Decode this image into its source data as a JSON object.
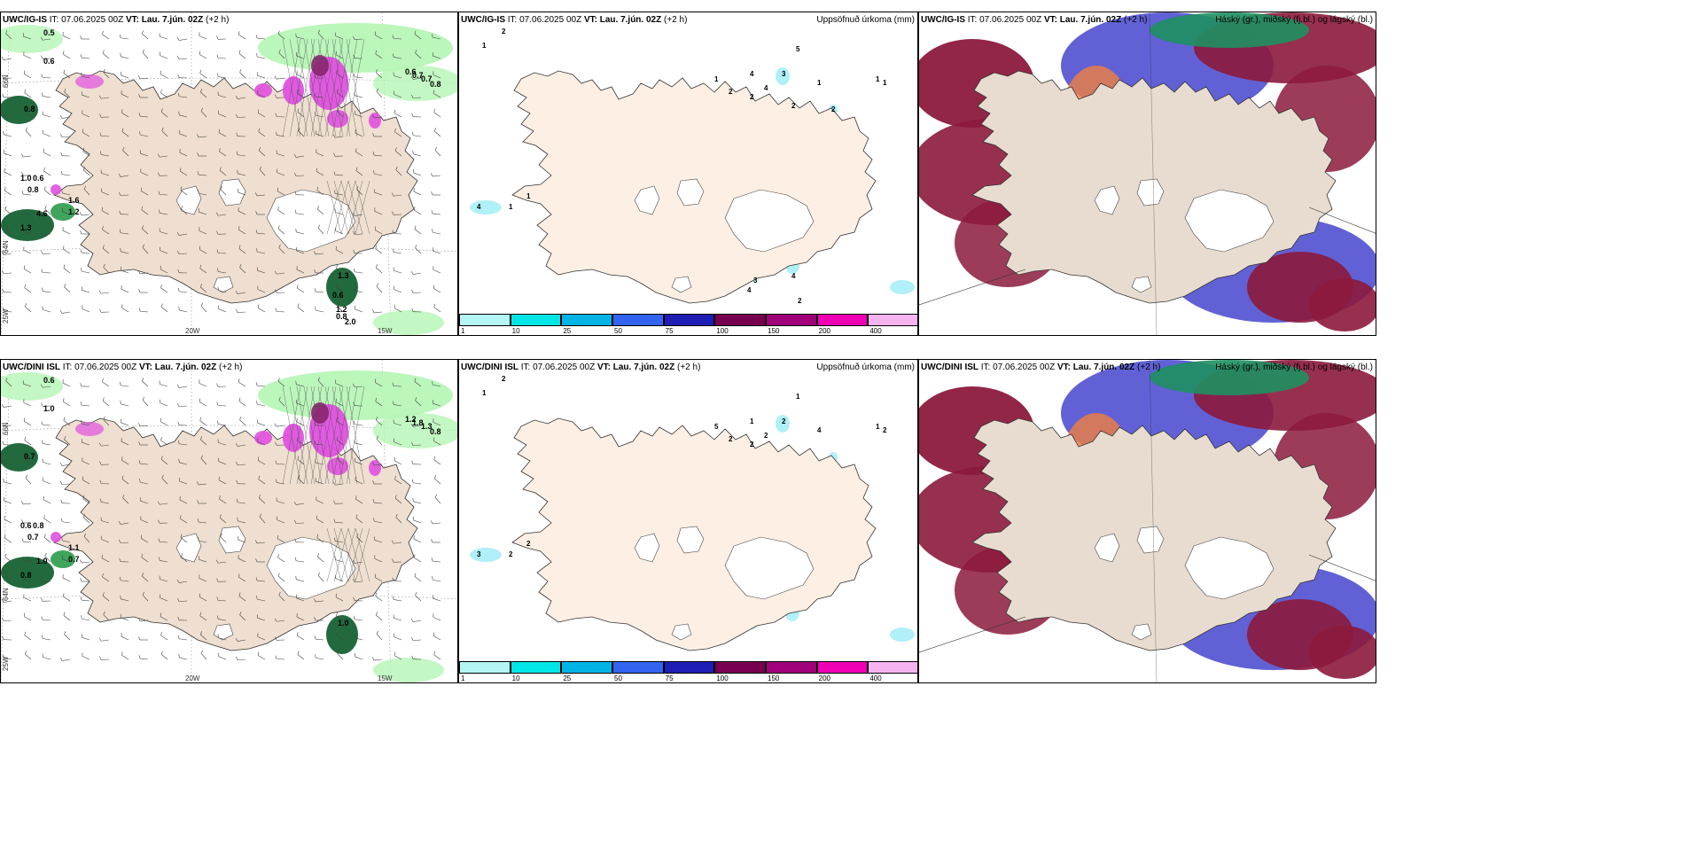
{
  "rows": [
    {
      "model": "UWC/IG-IS",
      "it_label": "IT:",
      "it_value": "07.06.2025 00Z",
      "vt_label": "VT:",
      "vt_value": "Lau. 7.jún. 02Z",
      "lead": "(+2 h)",
      "precip_values": [
        "2",
        "1",
        "4",
        "1",
        "1",
        "5",
        "4",
        "3",
        "4",
        "2",
        "2",
        "1",
        "1",
        "1",
        "1",
        "2",
        "2",
        "3",
        "4",
        "4",
        "2"
      ],
      "wind_values": [
        "0.5",
        "0.6",
        "0.8",
        "1.0",
        "0.6",
        "0.8",
        "4.6",
        "1.6",
        "1.2",
        "1.3",
        "0.6",
        "0.7",
        "0.7",
        "0.8",
        "1.3",
        "0.6",
        "1.2",
        "0.8",
        "2.0"
      ]
    },
    {
      "model": "UWC/DINI ISL",
      "it_label": "IT:",
      "it_value": "07.06.2025 00Z",
      "vt_label": "VT:",
      "vt_value": "Lau. 7.jún. 02Z",
      "lead": "(+2 h)",
      "precip_values": [
        "2",
        "1",
        "3",
        "2",
        "2",
        "1",
        "1",
        "2",
        "2",
        "2",
        "2",
        "5",
        "4",
        "1",
        "2"
      ],
      "wind_values": [
        "0.6",
        "1.0",
        "0.7",
        "0.6",
        "0.8",
        "0.7",
        "1.0",
        "1.1",
        "0.7",
        "0.8",
        "1.2",
        "1.8",
        "1.3",
        "0.8",
        "1.0"
      ]
    }
  ],
  "precip_title": "Uppsöfnuð úrkoma (mm)",
  "cloud_title": "Háský (gr.), miðský (fj.bl.) og lágský (bl.)",
  "lon_labels": [
    "25W",
    "20W",
    "15W"
  ],
  "lat_labels": [
    "66N",
    "64N"
  ],
  "colorbar": {
    "labels": [
      "1",
      "10",
      "25",
      "50",
      "75",
      "100",
      "150",
      "200",
      "400"
    ],
    "colors": [
      "#b4f5f5",
      "#00e6e6",
      "#00b4e6",
      "#3264f0",
      "#1e1eb4",
      "#780050",
      "#a0007a",
      "#f000b4",
      "#f5b4f0"
    ]
  },
  "colors": {
    "land": "#eedfd0",
    "land_precip": "#fdefe3",
    "sea": "#ffffff",
    "green_light": "#b4f5b4",
    "green_dark": "#0a5a28",
    "magenta": "#e050e0",
    "purple": "#8c2070",
    "cyan_precip": "#b0f0f8",
    "cloud_high_red": "#8c1a3c",
    "cloud_mid_blue": "#5050d0",
    "cloud_low_green": "#1e9060",
    "orange": "#f08040"
  }
}
